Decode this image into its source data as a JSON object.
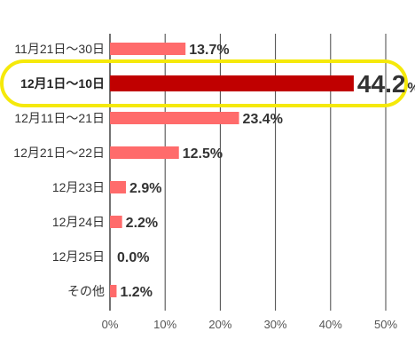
{
  "chart_data": {
    "type": "bar",
    "orientation": "horizontal",
    "categories": [
      "11月21日～30日",
      "12月1日～10日",
      "12月11日～21日",
      "12月21日～22日",
      "12月23日",
      "12月24日",
      "12月25日",
      "その他"
    ],
    "values": [
      13.7,
      44.2,
      23.4,
      12.5,
      2.9,
      2.2,
      0.0,
      1.2
    ],
    "value_labels": [
      "13.7%",
      "44.2",
      "23.4%",
      "12.5%",
      "2.9%",
      "2.2%",
      "0.0%",
      "1.2%"
    ],
    "highlight_index": 1,
    "highlight_unit": "%",
    "title": "",
    "xlabel": "",
    "ylabel": "",
    "xlim": [
      0,
      50
    ],
    "x_ticks": [
      "0%",
      "10%",
      "20%",
      "30%",
      "40%",
      "50%"
    ],
    "grid": true,
    "colors": {
      "bar": "#ff6b6b",
      "bar_highlight": "#c00000",
      "highlight_frame": "#f5e90a",
      "grid": "#444444"
    }
  }
}
